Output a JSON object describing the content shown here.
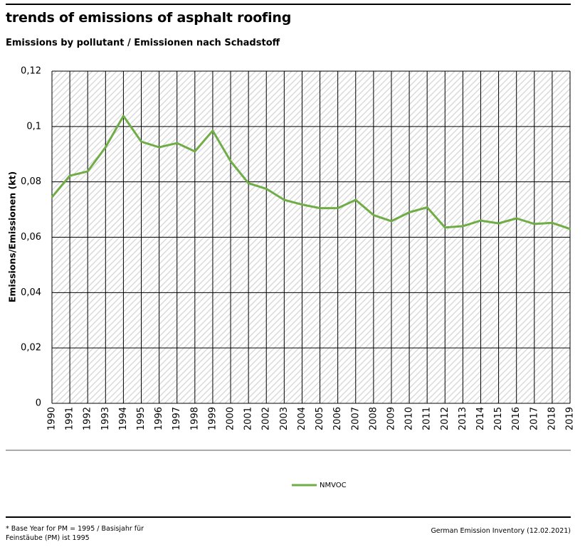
{
  "header": {
    "title": "trends of emissions of asphalt roofing",
    "subtitle": "Emissions by pollutant / Emissionen nach Schadstoff"
  },
  "footer": {
    "footnote": "* Base Year for PM = 1995 / Basisjahr für Feinstäube (PM) ist 1995",
    "source": "German Emission Inventory (12.02.2021)"
  },
  "chart_data": {
    "type": "line",
    "title": "trends of emissions of asphalt roofing",
    "subtitle": "Emissions by pollutant / Emissionen nach Schadstoff",
    "xlabel": "",
    "ylabel": "Emissions/Emissionen (kt)",
    "ylim": [
      0,
      0.12
    ],
    "yticks": [
      "0",
      "0,02",
      "0,04",
      "0,06",
      "0,08",
      "0,1",
      "0,12"
    ],
    "ytick_values": [
      0,
      0.02,
      0.04,
      0.06,
      0.08,
      0.1,
      0.12
    ],
    "x": [
      "1990",
      "1991",
      "1992",
      "1993",
      "1994",
      "1995",
      "1996",
      "1997",
      "1998",
      "1999",
      "2000",
      "2001",
      "2002",
      "2003",
      "2004",
      "2005",
      "2006",
      "2007",
      "2008",
      "2009",
      "2010",
      "2011",
      "2012",
      "2013",
      "2014",
      "2015",
      "2016",
      "2017",
      "2018",
      "2019"
    ],
    "series": [
      {
        "name": "NMVOC",
        "color": "#70ad47",
        "values": [
          0.0745,
          0.0822,
          0.0838,
          0.0925,
          0.1038,
          0.0945,
          0.0925,
          0.094,
          0.091,
          0.0985,
          0.0875,
          0.0795,
          0.0775,
          0.0735,
          0.0718,
          0.0705,
          0.0705,
          0.0735,
          0.068,
          0.0658,
          0.069,
          0.0708,
          0.0635,
          0.064,
          0.066,
          0.065,
          0.0668,
          0.0648,
          0.0652,
          0.063
        ]
      }
    ],
    "grid": true,
    "legend_position": "bottom"
  }
}
